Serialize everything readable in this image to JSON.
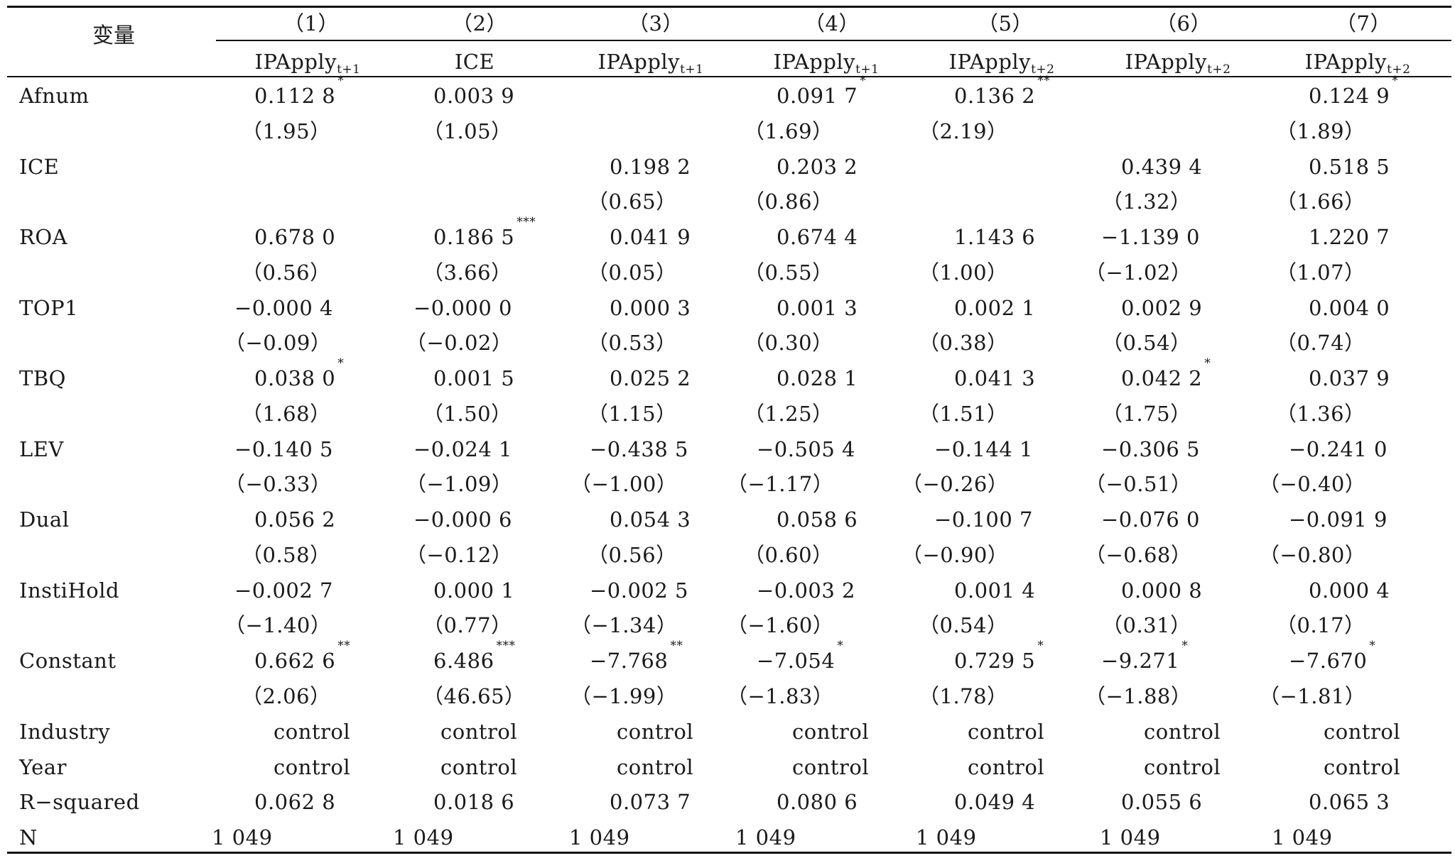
{
  "header": {
    "variable_label": "变量",
    "columns": [
      {
        "num": "（1）",
        "dep_base": "IPApply",
        "dep_sub": "t+1"
      },
      {
        "num": "（2）",
        "dep_base": "ICE",
        "dep_sub": ""
      },
      {
        "num": "（3）",
        "dep_base": "IPApply",
        "dep_sub": "t+1"
      },
      {
        "num": "（4）",
        "dep_base": "IPApply",
        "dep_sub": "t+1"
      },
      {
        "num": "（5）",
        "dep_base": "IPApply",
        "dep_sub": "t+2"
      },
      {
        "num": "（6）",
        "dep_base": "IPApply",
        "dep_sub": "t+2"
      },
      {
        "num": "（7）",
        "dep_base": "IPApply",
        "dep_sub": "t+2"
      }
    ]
  },
  "rows": [
    {
      "label": "Afnum",
      "coef": [
        {
          "v": "0.112 8",
          "s": "*"
        },
        {
          "v": "0.003 9",
          "s": ""
        },
        {
          "v": "",
          "s": ""
        },
        {
          "v": "0.091 7",
          "s": "*"
        },
        {
          "v": "0.136 2",
          "s": "**"
        },
        {
          "v": "",
          "s": ""
        },
        {
          "v": "0.124 9",
          "s": "*"
        }
      ],
      "t": [
        "（1.95）",
        "（1.05）",
        "",
        "（1.69）",
        "（2.19）",
        "",
        "（1.89）"
      ]
    },
    {
      "label": "ICE",
      "coef": [
        {
          "v": "",
          "s": ""
        },
        {
          "v": "",
          "s": ""
        },
        {
          "v": "0.198 2",
          "s": ""
        },
        {
          "v": "0.203 2",
          "s": ""
        },
        {
          "v": "",
          "s": ""
        },
        {
          "v": "0.439 4",
          "s": ""
        },
        {
          "v": "0.518 5",
          "s": ""
        }
      ],
      "t": [
        "",
        "",
        "（0.65）",
        "（0.86）",
        "",
        "（1.32）",
        "（1.66）"
      ]
    },
    {
      "label": "ROA",
      "coef": [
        {
          "v": "0.678 0",
          "s": ""
        },
        {
          "v": "0.186 5",
          "s": "***"
        },
        {
          "v": "0.041 9",
          "s": ""
        },
        {
          "v": "0.674 4",
          "s": ""
        },
        {
          "v": "1.143 6",
          "s": ""
        },
        {
          "v": "−1.139 0",
          "s": ""
        },
        {
          "v": "1.220 7",
          "s": ""
        }
      ],
      "t": [
        "（0.56）",
        "（3.66）",
        "（0.05）",
        "（0.55）",
        "（1.00）",
        "（−1.02）",
        "（1.07）"
      ]
    },
    {
      "label": "TOP1",
      "coef": [
        {
          "v": "−0.000 4",
          "s": ""
        },
        {
          "v": "−0.000 0",
          "s": ""
        },
        {
          "v": "0.000 3",
          "s": ""
        },
        {
          "v": "0.001 3",
          "s": ""
        },
        {
          "v": "0.002 1",
          "s": ""
        },
        {
          "v": "0.002 9",
          "s": ""
        },
        {
          "v": "0.004 0",
          "s": ""
        }
      ],
      "t": [
        "（−0.09）",
        "（−0.02）",
        "（0.53）",
        "（0.30）",
        "（0.38）",
        "（0.54）",
        "（0.74）"
      ]
    },
    {
      "label": "TBQ",
      "coef": [
        {
          "v": "0.038 0",
          "s": "*"
        },
        {
          "v": "0.001 5",
          "s": ""
        },
        {
          "v": "0.025 2",
          "s": ""
        },
        {
          "v": "0.028 1",
          "s": ""
        },
        {
          "v": "0.041 3",
          "s": ""
        },
        {
          "v": "0.042 2",
          "s": "*"
        },
        {
          "v": "0.037 9",
          "s": ""
        }
      ],
      "t": [
        "（1.68）",
        "（1.50）",
        "（1.15）",
        "（1.25）",
        "（1.51）",
        "（1.75）",
        "（1.36）"
      ]
    },
    {
      "label": "LEV",
      "coef": [
        {
          "v": "−0.140 5",
          "s": ""
        },
        {
          "v": "−0.024 1",
          "s": ""
        },
        {
          "v": "−0.438 5",
          "s": ""
        },
        {
          "v": "−0.505 4",
          "s": ""
        },
        {
          "v": "−0.144 1",
          "s": ""
        },
        {
          "v": "−0.306 5",
          "s": ""
        },
        {
          "v": "−0.241 0",
          "s": ""
        }
      ],
      "t": [
        "（−0.33）",
        "（−1.09）",
        "（−1.00）",
        "（−1.17）",
        "（−0.26）",
        "（−0.51）",
        "（−0.40）"
      ]
    },
    {
      "label": "Dual",
      "coef": [
        {
          "v": "0.056 2",
          "s": ""
        },
        {
          "v": "−0.000 6",
          "s": ""
        },
        {
          "v": "0.054 3",
          "s": ""
        },
        {
          "v": "0.058 6",
          "s": ""
        },
        {
          "v": "−0.100 7",
          "s": ""
        },
        {
          "v": "−0.076 0",
          "s": ""
        },
        {
          "v": "−0.091 9",
          "s": ""
        }
      ],
      "t": [
        "（0.58）",
        "（−0.12）",
        "（0.56）",
        "（0.60）",
        "（−0.90）",
        "（−0.68）",
        "（−0.80）"
      ]
    },
    {
      "label": "InstiHold",
      "coef": [
        {
          "v": "−0.002 7",
          "s": ""
        },
        {
          "v": "0.000 1",
          "s": ""
        },
        {
          "v": "−0.002 5",
          "s": ""
        },
        {
          "v": "−0.003 2",
          "s": ""
        },
        {
          "v": "0.001 4",
          "s": ""
        },
        {
          "v": "0.000 8",
          "s": ""
        },
        {
          "v": "0.000 4",
          "s": ""
        }
      ],
      "t": [
        "（−1.40）",
        "（0.77）",
        "（−1.34）",
        "（−1.60）",
        "（0.54）",
        "（0.31）",
        "（0.17）"
      ]
    },
    {
      "label": "Constant",
      "coef": [
        {
          "v": "0.662 6",
          "s": "**"
        },
        {
          "v": "6.486",
          "s": "***"
        },
        {
          "v": "−7.768",
          "s": "**"
        },
        {
          "v": "−7.054",
          "s": "*"
        },
        {
          "v": "0.729 5",
          "s": "*"
        },
        {
          "v": "−9.271",
          "s": "*"
        },
        {
          "v": "−7.670",
          "s": "*"
        }
      ],
      "t": [
        "（2.06）",
        "（46.65）",
        "（−1.99）",
        "（−1.83）",
        "（1.78）",
        "（−1.88）",
        "（−1.81）"
      ]
    }
  ],
  "footer_rows": [
    {
      "label": "Industry",
      "values": [
        "control",
        "control",
        "control",
        "control",
        "control",
        "control",
        "control"
      ]
    },
    {
      "label": "Year",
      "values": [
        "control",
        "control",
        "control",
        "control",
        "control",
        "control",
        "control"
      ]
    },
    {
      "label": "R−squared",
      "values": [
        "0.062 8",
        "0.018 6",
        "0.073 7",
        "0.080 6",
        "0.049 4",
        "0.055 6",
        "0.065 3"
      ]
    },
    {
      "label": "N",
      "values": [
        "1 049",
        "1 049",
        "1 049",
        "1 049",
        "1 049",
        "1 049",
        "1 049"
      ]
    }
  ]
}
